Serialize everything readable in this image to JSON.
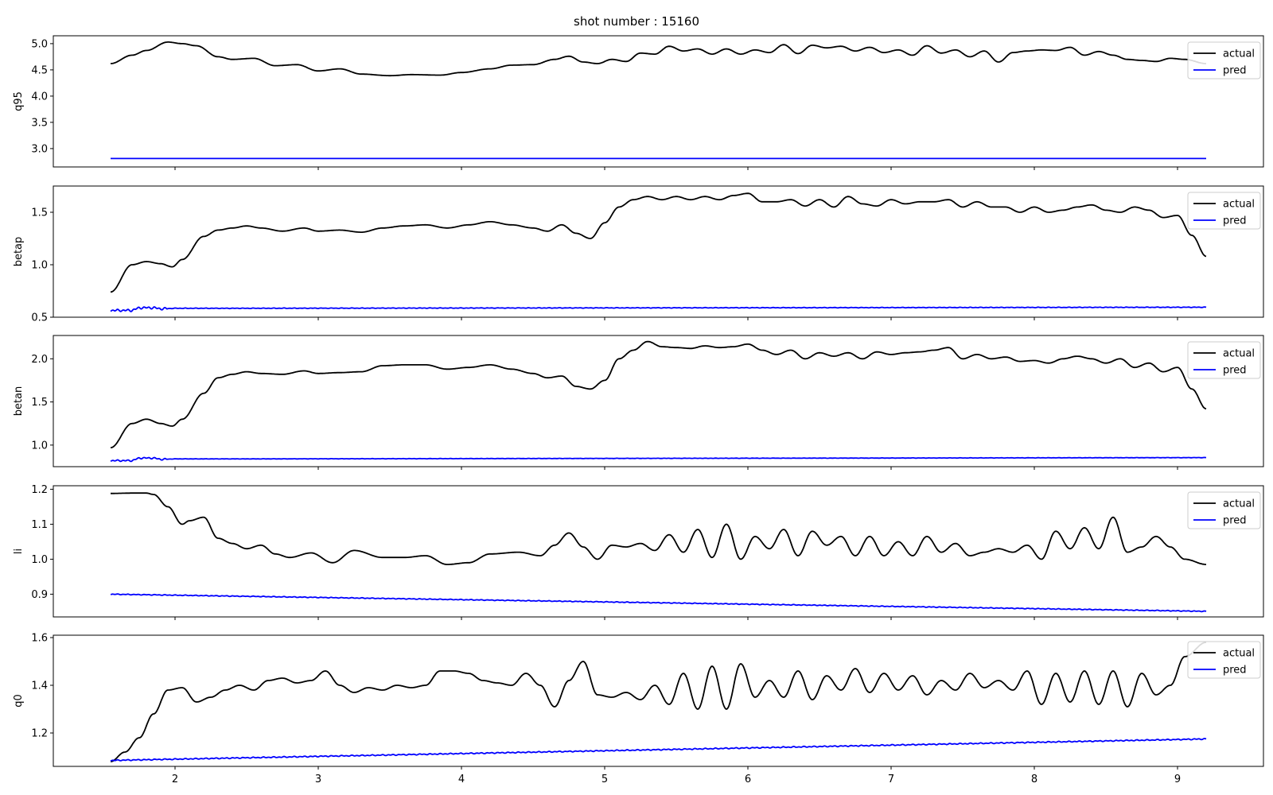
{
  "figure": {
    "suptitle": "shot number : 15160",
    "xaxis": {
      "ticks": [
        2,
        3,
        4,
        5,
        6,
        7,
        8,
        9
      ],
      "xlim": [
        1.15,
        9.6
      ]
    },
    "legend": {
      "labels": [
        "actual",
        "pred"
      ],
      "colors": [
        "#000000",
        "#0000ff"
      ],
      "placement": "top-right"
    }
  },
  "chart_data": [
    {
      "type": "line",
      "ylabel": "q95",
      "ylim": [
        2.65,
        5.15
      ],
      "yticks": [
        3.0,
        3.5,
        4.0,
        4.5,
        5.0
      ],
      "ytick_labels": [
        "3.0",
        "3.5",
        "4.0",
        "4.5",
        "5.0"
      ],
      "series": [
        {
          "name": "actual",
          "color": "#000000",
          "wiggle": [
            0,
            0
          ],
          "x": [
            1.55,
            1.7,
            1.8,
            1.95,
            2.05,
            2.15,
            2.3,
            2.4,
            2.55,
            2.7,
            2.85,
            3.0,
            3.15,
            3.3,
            3.5,
            3.65,
            3.85,
            4.0,
            4.2,
            4.35,
            4.5,
            4.65,
            4.75,
            4.85,
            4.95,
            5.05,
            5.15,
            5.25,
            5.35,
            5.45,
            5.55,
            5.65,
            5.75,
            5.85,
            5.95,
            6.05,
            6.15,
            6.25,
            6.35,
            6.45,
            6.55,
            6.65,
            6.75,
            6.85,
            6.95,
            7.05,
            7.15,
            7.25,
            7.35,
            7.45,
            7.55,
            7.65,
            7.75,
            7.85,
            7.95,
            8.05,
            8.15,
            8.25,
            8.35,
            8.45,
            8.55,
            8.65,
            8.75,
            8.85,
            8.95,
            9.05,
            9.2
          ],
          "y": [
            4.62,
            4.78,
            4.87,
            5.03,
            5.0,
            4.96,
            4.75,
            4.7,
            4.72,
            4.58,
            4.6,
            4.48,
            4.52,
            4.42,
            4.39,
            4.41,
            4.4,
            4.45,
            4.52,
            4.59,
            4.6,
            4.7,
            4.76,
            4.65,
            4.62,
            4.7,
            4.66,
            4.82,
            4.8,
            4.95,
            4.86,
            4.9,
            4.8,
            4.9,
            4.8,
            4.88,
            4.83,
            4.98,
            4.81,
            4.97,
            4.92,
            4.95,
            4.86,
            4.93,
            4.83,
            4.88,
            4.78,
            4.96,
            4.82,
            4.88,
            4.75,
            4.86,
            4.65,
            4.83,
            4.86,
            4.88,
            4.87,
            4.93,
            4.78,
            4.85,
            4.78,
            4.7,
            4.68,
            4.66,
            4.72,
            4.7,
            4.62
          ]
        },
        {
          "name": "pred",
          "color": "#0000ff",
          "wiggle": [
            0,
            0
          ],
          "x": [
            1.55,
            9.2
          ],
          "y": [
            2.81,
            2.81
          ]
        }
      ]
    },
    {
      "type": "line",
      "ylabel": "betap",
      "ylim": [
        0.5,
        1.75
      ],
      "yticks": [
        0.5,
        1.0,
        1.5
      ],
      "ytick_labels": [
        "0.5",
        "1.0",
        "1.5"
      ],
      "series": [
        {
          "name": "actual",
          "color": "#000000",
          "wiggle": [
            0,
            0
          ],
          "x": [
            1.55,
            1.7,
            1.8,
            1.9,
            1.98,
            2.05,
            2.2,
            2.3,
            2.4,
            2.5,
            2.6,
            2.75,
            2.9,
            3.0,
            3.15,
            3.3,
            3.45,
            3.6,
            3.75,
            3.9,
            4.05,
            4.2,
            4.35,
            4.5,
            4.6,
            4.7,
            4.8,
            4.9,
            5.0,
            5.1,
            5.2,
            5.3,
            5.4,
            5.5,
            5.6,
            5.7,
            5.8,
            5.9,
            6.0,
            6.1,
            6.2,
            6.3,
            6.4,
            6.5,
            6.6,
            6.7,
            6.8,
            6.9,
            7.0,
            7.1,
            7.2,
            7.3,
            7.4,
            7.5,
            7.6,
            7.7,
            7.8,
            7.9,
            8.0,
            8.1,
            8.2,
            8.3,
            8.4,
            8.5,
            8.6,
            8.7,
            8.8,
            8.9,
            9.0,
            9.1,
            9.2
          ],
          "y": [
            0.74,
            1.0,
            1.03,
            1.01,
            0.98,
            1.05,
            1.27,
            1.33,
            1.35,
            1.37,
            1.35,
            1.32,
            1.35,
            1.32,
            1.33,
            1.31,
            1.35,
            1.37,
            1.38,
            1.35,
            1.38,
            1.41,
            1.38,
            1.35,
            1.32,
            1.38,
            1.3,
            1.25,
            1.4,
            1.55,
            1.62,
            1.65,
            1.62,
            1.65,
            1.62,
            1.65,
            1.62,
            1.66,
            1.68,
            1.6,
            1.6,
            1.62,
            1.56,
            1.62,
            1.55,
            1.65,
            1.58,
            1.56,
            1.62,
            1.58,
            1.6,
            1.6,
            1.62,
            1.55,
            1.6,
            1.55,
            1.55,
            1.5,
            1.55,
            1.5,
            1.52,
            1.55,
            1.57,
            1.52,
            1.5,
            1.55,
            1.52,
            1.45,
            1.47,
            1.28,
            1.08
          ]
        },
        {
          "name": "pred",
          "color": "#0000ff",
          "wiggle": [
            0.012,
            0.003
          ],
          "x": [
            1.55,
            1.7,
            1.75,
            1.85,
            1.9,
            2.0,
            2.5,
            9.2
          ],
          "y": [
            0.565,
            0.565,
            0.59,
            0.59,
            0.58,
            0.585,
            0.585,
            0.595
          ]
        }
      ]
    },
    {
      "type": "line",
      "ylabel": "betan",
      "ylim": [
        0.75,
        2.27
      ],
      "yticks": [
        1.0,
        1.5,
        2.0
      ],
      "ytick_labels": [
        "1.0",
        "1.5",
        "2.0"
      ],
      "series": [
        {
          "name": "actual",
          "color": "#000000",
          "wiggle": [
            0,
            0
          ],
          "x": [
            1.55,
            1.7,
            1.8,
            1.9,
            1.98,
            2.05,
            2.2,
            2.3,
            2.4,
            2.5,
            2.6,
            2.75,
            2.9,
            3.0,
            3.15,
            3.3,
            3.45,
            3.6,
            3.75,
            3.9,
            4.05,
            4.2,
            4.35,
            4.5,
            4.6,
            4.7,
            4.8,
            4.9,
            5.0,
            5.1,
            5.2,
            5.3,
            5.4,
            5.5,
            5.6,
            5.7,
            5.8,
            5.9,
            6.0,
            6.1,
            6.2,
            6.3,
            6.4,
            6.5,
            6.6,
            6.7,
            6.8,
            6.9,
            7.0,
            7.1,
            7.2,
            7.3,
            7.4,
            7.5,
            7.6,
            7.7,
            7.8,
            7.9,
            8.0,
            8.1,
            8.2,
            8.3,
            8.4,
            8.5,
            8.6,
            8.7,
            8.8,
            8.9,
            9.0,
            9.1,
            9.2
          ],
          "y": [
            0.97,
            1.25,
            1.3,
            1.25,
            1.22,
            1.3,
            1.6,
            1.78,
            1.82,
            1.85,
            1.83,
            1.82,
            1.86,
            1.83,
            1.84,
            1.85,
            1.92,
            1.93,
            1.93,
            1.88,
            1.9,
            1.93,
            1.88,
            1.83,
            1.78,
            1.8,
            1.68,
            1.65,
            1.75,
            2.0,
            2.1,
            2.2,
            2.14,
            2.13,
            2.12,
            2.15,
            2.13,
            2.14,
            2.17,
            2.1,
            2.05,
            2.1,
            2.0,
            2.07,
            2.03,
            2.07,
            2.0,
            2.08,
            2.05,
            2.07,
            2.08,
            2.1,
            2.13,
            2.0,
            2.05,
            2.0,
            2.02,
            1.97,
            1.98,
            1.95,
            2.0,
            2.03,
            2.0,
            1.95,
            2.0,
            1.9,
            1.95,
            1.85,
            1.9,
            1.65,
            1.42
          ]
        },
        {
          "name": "pred",
          "color": "#0000ff",
          "wiggle": [
            0.01,
            0.002
          ],
          "x": [
            1.55,
            1.7,
            1.75,
            1.85,
            1.9,
            2.0,
            2.5,
            9.2
          ],
          "y": [
            0.82,
            0.82,
            0.85,
            0.85,
            0.835,
            0.84,
            0.84,
            0.855
          ]
        }
      ]
    },
    {
      "type": "line",
      "ylabel": "li",
      "ylim": [
        0.835,
        1.21
      ],
      "yticks": [
        0.9,
        1.0,
        1.1,
        1.2
      ],
      "ytick_labels": [
        "0.9",
        "1.0",
        "1.1",
        "1.2"
      ],
      "series": [
        {
          "name": "actual",
          "color": "#000000",
          "wiggle": [
            0,
            0
          ],
          "x": [
            1.55,
            1.7,
            1.8,
            1.85,
            1.95,
            2.05,
            2.1,
            2.2,
            2.3,
            2.4,
            2.5,
            2.6,
            2.7,
            2.8,
            2.95,
            3.1,
            3.25,
            3.45,
            3.6,
            3.75,
            3.9,
            4.05,
            4.2,
            4.4,
            4.55,
            4.65,
            4.75,
            4.85,
            4.95,
            5.05,
            5.15,
            5.25,
            5.35,
            5.45,
            5.55,
            5.65,
            5.75,
            5.85,
            5.95,
            6.05,
            6.15,
            6.25,
            6.35,
            6.45,
            6.55,
            6.65,
            6.75,
            6.85,
            6.95,
            7.05,
            7.15,
            7.25,
            7.35,
            7.45,
            7.55,
            7.65,
            7.75,
            7.85,
            7.95,
            8.05,
            8.15,
            8.25,
            8.35,
            8.45,
            8.55,
            8.65,
            8.75,
            8.85,
            8.95,
            9.05,
            9.2
          ],
          "y": [
            1.188,
            1.189,
            1.189,
            1.185,
            1.15,
            1.1,
            1.11,
            1.12,
            1.06,
            1.045,
            1.03,
            1.04,
            1.015,
            1.005,
            1.018,
            0.99,
            1.025,
            1.005,
            1.005,
            1.01,
            0.985,
            0.99,
            1.015,
            1.02,
            1.01,
            1.04,
            1.075,
            1.035,
            1.0,
            1.04,
            1.035,
            1.045,
            1.025,
            1.07,
            1.02,
            1.085,
            1.005,
            1.1,
            1.0,
            1.065,
            1.03,
            1.085,
            1.01,
            1.08,
            1.04,
            1.065,
            1.01,
            1.065,
            1.01,
            1.05,
            1.01,
            1.065,
            1.02,
            1.045,
            1.01,
            1.02,
            1.03,
            1.02,
            1.04,
            1.0,
            1.08,
            1.03,
            1.09,
            1.03,
            1.12,
            1.02,
            1.035,
            1.065,
            1.035,
            1.0,
            0.985
          ]
        },
        {
          "name": "pred",
          "color": "#0000ff",
          "wiggle": [
            0.0012,
            0.0012
          ],
          "x": [
            1.55,
            9.2
          ],
          "y": [
            0.9,
            0.851
          ]
        }
      ]
    },
    {
      "type": "line",
      "ylabel": "q0",
      "ylim": [
        1.06,
        1.61
      ],
      "yticks": [
        1.2,
        1.4,
        1.6
      ],
      "ytick_labels": [
        "1.2",
        "1.4",
        "1.6"
      ],
      "series": [
        {
          "name": "actual",
          "color": "#000000",
          "wiggle": [
            0,
            0
          ],
          "x": [
            1.55,
            1.65,
            1.75,
            1.85,
            1.95,
            2.05,
            2.15,
            2.25,
            2.35,
            2.45,
            2.55,
            2.65,
            2.75,
            2.85,
            2.95,
            3.05,
            3.15,
            3.25,
            3.35,
            3.45,
            3.55,
            3.65,
            3.75,
            3.85,
            3.95,
            4.05,
            4.15,
            4.25,
            4.35,
            4.45,
            4.55,
            4.65,
            4.75,
            4.85,
            4.95,
            5.05,
            5.15,
            5.25,
            5.35,
            5.45,
            5.55,
            5.65,
            5.75,
            5.85,
            5.95,
            6.05,
            6.15,
            6.25,
            6.35,
            6.45,
            6.55,
            6.65,
            6.75,
            6.85,
            6.95,
            7.05,
            7.15,
            7.25,
            7.35,
            7.45,
            7.55,
            7.65,
            7.75,
            7.85,
            7.95,
            8.05,
            8.15,
            8.25,
            8.35,
            8.45,
            8.55,
            8.65,
            8.75,
            8.85,
            8.95,
            9.05,
            9.2
          ],
          "y": [
            1.08,
            1.12,
            1.18,
            1.28,
            1.38,
            1.39,
            1.33,
            1.35,
            1.38,
            1.4,
            1.38,
            1.42,
            1.43,
            1.41,
            1.42,
            1.46,
            1.4,
            1.37,
            1.39,
            1.38,
            1.4,
            1.39,
            1.4,
            1.46,
            1.46,
            1.45,
            1.42,
            1.41,
            1.4,
            1.45,
            1.4,
            1.31,
            1.42,
            1.5,
            1.36,
            1.35,
            1.37,
            1.34,
            1.4,
            1.32,
            1.45,
            1.3,
            1.48,
            1.3,
            1.49,
            1.35,
            1.42,
            1.35,
            1.46,
            1.34,
            1.44,
            1.38,
            1.47,
            1.37,
            1.45,
            1.38,
            1.44,
            1.36,
            1.42,
            1.38,
            1.45,
            1.39,
            1.42,
            1.38,
            1.46,
            1.32,
            1.45,
            1.33,
            1.46,
            1.32,
            1.46,
            1.31,
            1.45,
            1.36,
            1.4,
            1.52,
            1.58
          ]
        },
        {
          "name": "pred",
          "color": "#0000ff",
          "wiggle": [
            0.0025,
            0.0025
          ],
          "x": [
            1.55,
            9.2
          ],
          "y": [
            1.085,
            1.175
          ]
        }
      ]
    }
  ]
}
